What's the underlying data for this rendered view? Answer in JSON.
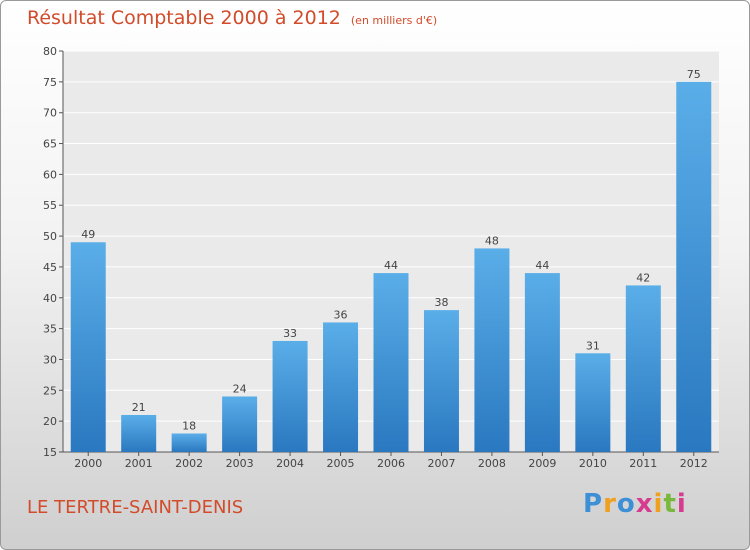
{
  "chart_data": {
    "type": "bar",
    "title": "Résultat Comptable 2000 à 2012",
    "subtitle": "(en milliers d'€)",
    "categories": [
      "2000",
      "2001",
      "2002",
      "2003",
      "2004",
      "2005",
      "2006",
      "2007",
      "2008",
      "2009",
      "2010",
      "2011",
      "2012"
    ],
    "values": [
      49,
      21,
      18,
      24,
      33,
      36,
      44,
      38,
      48,
      44,
      31,
      42,
      75
    ],
    "ylim": [
      15,
      80
    ],
    "yticks": [
      15,
      20,
      25,
      30,
      35,
      40,
      45,
      50,
      55,
      60,
      65,
      70,
      75,
      80
    ],
    "grid": true,
    "bar_color": "#3d8fd6"
  },
  "commune": "LE TERTRE-SAINT-DENIS",
  "brand": {
    "letters": [
      "P",
      "r",
      "o",
      "x",
      "i",
      "t",
      "i"
    ],
    "colors": [
      "#3d8fd6",
      "#f0a020",
      "#3d8fd6",
      "#d63b8f",
      "#f0a020",
      "#7ab83d",
      "#d63b8f"
    ]
  }
}
